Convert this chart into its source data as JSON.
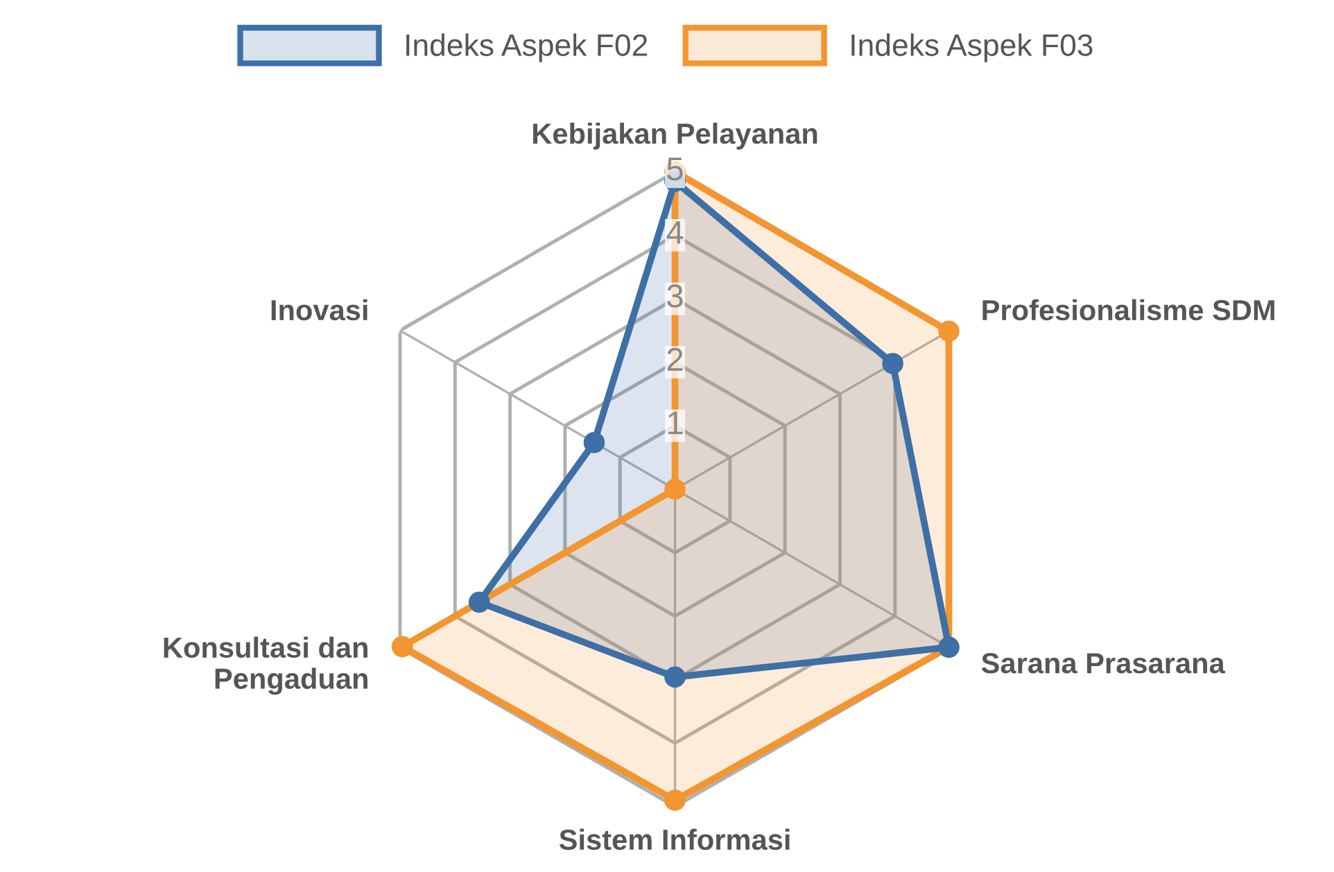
{
  "chart_data": {
    "type": "radar",
    "categories": [
      "Kebijakan Pelayanan",
      "Profesionalisme SDM",
      "Sarana Prasarana",
      "Sistem Informasi",
      "Konsultasi dan\nPengaduan",
      "Inovasi"
    ],
    "series": [
      {
        "name": "Indeks Aspek F02",
        "color": "#3e6fa6",
        "values": [
          4.85,
          3.96,
          4.98,
          2.96,
          3.56,
          1.47
        ]
      },
      {
        "name": "Indeks Aspek F03",
        "color": "#f39530",
        "values": [
          5.0,
          4.98,
          4.98,
          4.9,
          4.96,
          0
        ]
      }
    ],
    "ylim": [
      0,
      5
    ],
    "yticks": [
      1,
      2,
      3,
      4,
      5
    ],
    "legend": "top",
    "marker": "circle",
    "grid": true
  }
}
